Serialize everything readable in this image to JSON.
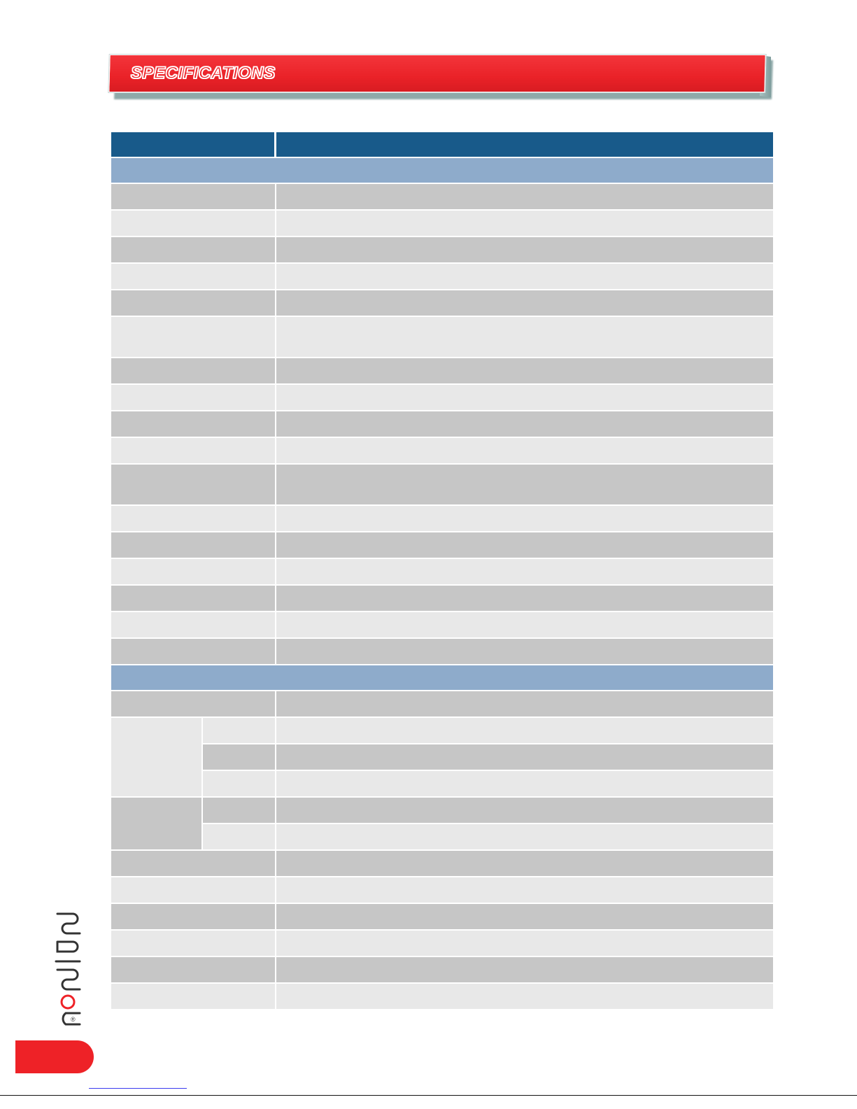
{
  "banner": {
    "title": "SPECIFICATIONS"
  },
  "colors": {
    "header_blue": "#185a8a",
    "section_blue": "#8eabcb",
    "row_dark": "#c6c6c6",
    "row_light": "#e8e8e8",
    "brand_red": "#ee2227"
  },
  "logo": {
    "icon": "brand-logo-icon",
    "registered": "®"
  }
}
